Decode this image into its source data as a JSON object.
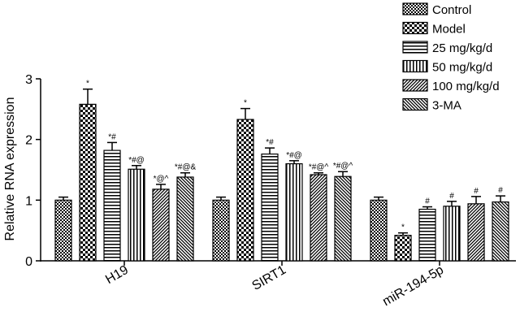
{
  "chart_data": {
    "type": "bar",
    "ylabel": "Relative RNA expression",
    "ylim": [
      0,
      3
    ],
    "yticks": [
      "0",
      "1",
      "2",
      "3"
    ],
    "categories": [
      "H19",
      "SIRT1",
      "miR-194-5p"
    ],
    "legend_position": "top-right",
    "series": [
      {
        "name": "Control",
        "pattern": "checker-small",
        "values": [
          1.0,
          1.0,
          1.0
        ],
        "errors": [
          0.05,
          0.05,
          0.05
        ],
        "annotations": [
          "",
          "",
          ""
        ]
      },
      {
        "name": "Model",
        "pattern": "checker-large",
        "values": [
          2.58,
          2.33,
          0.42
        ],
        "errors": [
          0.25,
          0.18,
          0.04
        ],
        "annotations": [
          "*",
          "*",
          "*"
        ]
      },
      {
        "name": "25 mg/kg/d",
        "pattern": "horizontal",
        "values": [
          1.82,
          1.76,
          0.85
        ],
        "errors": [
          0.13,
          0.1,
          0.04
        ],
        "annotations": [
          "*#",
          "*#",
          "#"
        ]
      },
      {
        "name": "50 mg/kg/d",
        "pattern": "vertical",
        "values": [
          1.51,
          1.6,
          0.9
        ],
        "errors": [
          0.06,
          0.05,
          0.08
        ],
        "annotations": [
          "*#@",
          "*#@",
          "#"
        ]
      },
      {
        "name": "100 mg/kg/d",
        "pattern": "diag-up",
        "values": [
          1.18,
          1.42,
          0.94
        ],
        "errors": [
          0.08,
          0.03,
          0.12
        ],
        "annotations": [
          "*@^",
          "*#@^",
          "#"
        ]
      },
      {
        "name": "3-MA",
        "pattern": "diag-down",
        "values": [
          1.38,
          1.39,
          0.97
        ],
        "errors": [
          0.07,
          0.08,
          0.1
        ],
        "annotations": [
          "*#@&",
          "*#@^",
          "#"
        ]
      }
    ]
  }
}
